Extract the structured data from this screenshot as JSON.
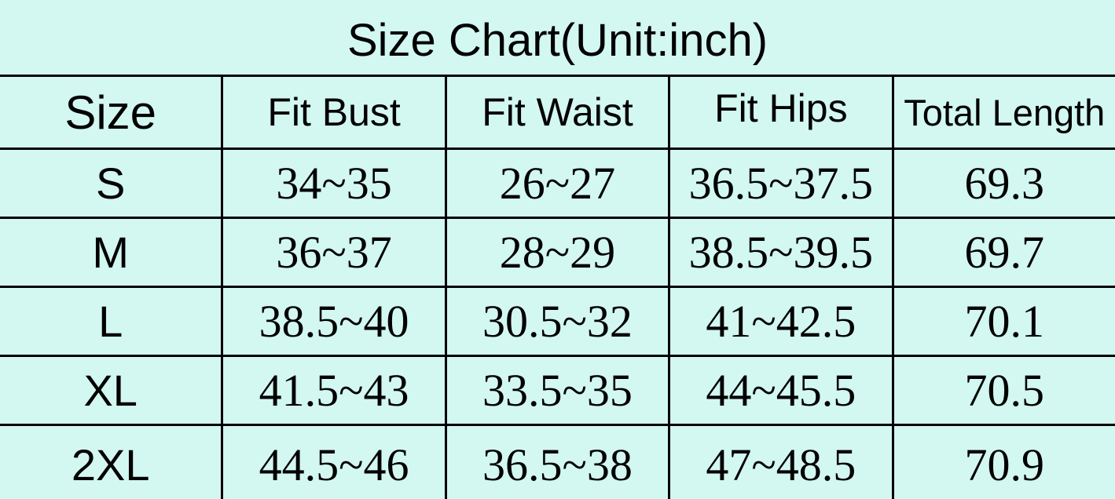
{
  "title": "Size Chart(Unit:inch)",
  "colors": {
    "background": "#d3f7f1",
    "border": "#000000",
    "text": "#000000"
  },
  "chart_data": {
    "type": "table",
    "title": "Size Chart(Unit:inch)",
    "unit": "inch",
    "columns": [
      "Size",
      "Fit Bust",
      "Fit Waist",
      "Fit Hips",
      "Total Length"
    ],
    "rows": [
      [
        "S",
        "34~35",
        "26~27",
        "36.5~37.5",
        "69.3"
      ],
      [
        "M",
        "36~37",
        "28~29",
        "38.5~39.5",
        "69.7"
      ],
      [
        "L",
        "38.5~40",
        "30.5~32",
        "41~42.5",
        "70.1"
      ],
      [
        "XL",
        "41.5~43",
        "33.5~35",
        "44~45.5",
        "70.5"
      ],
      [
        "2XL",
        "44.5~46",
        "36.5~38",
        "47~48.5",
        "70.9"
      ]
    ]
  }
}
